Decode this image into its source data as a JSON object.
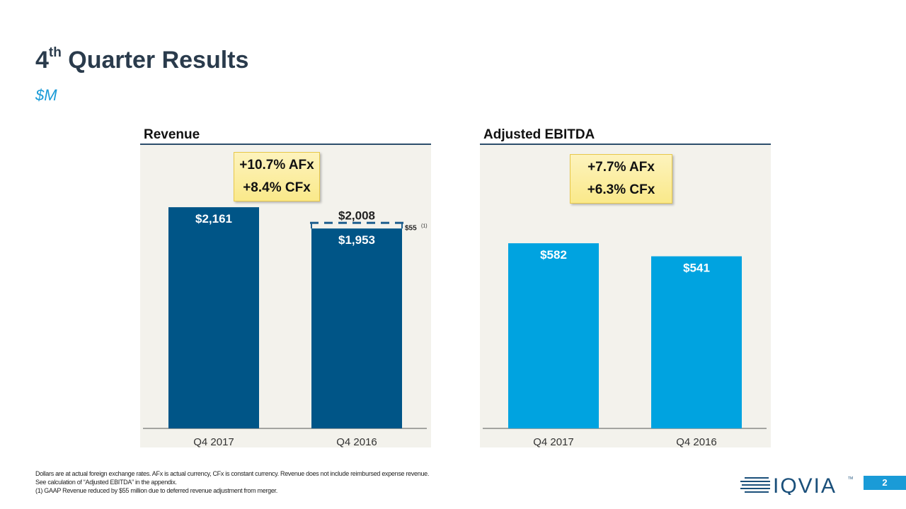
{
  "header": {
    "title_main": "4",
    "title_sup": "th",
    "title_rest": " Quarter Results",
    "subtitle": "$M"
  },
  "colors": {
    "revenue_bar": "#005587",
    "ebitda_bar": "#00a3e0",
    "panel_bg": "#f3f2ec",
    "callout": "#fae98a",
    "accent": "#1a9bd7"
  },
  "chart_data": [
    {
      "type": "bar",
      "title": "Revenue",
      "categories": [
        "Q4 2017",
        "Q4 2016"
      ],
      "values": [
        2161,
        1953
      ],
      "data_labels": [
        "$2,161",
        "$1,953"
      ],
      "adjustment": {
        "category": "Q4 2016",
        "value": 55,
        "label": "$55",
        "footnote_ref": "(1)",
        "total": 2008,
        "total_label": "$2,008"
      },
      "callout": [
        "+10.7% AFx",
        "+8.4% CFx"
      ],
      "ylim": [
        0,
        2735
      ],
      "grid": false
    },
    {
      "type": "bar",
      "title": "Adjusted EBITDA",
      "categories": [
        "Q4 2017",
        "Q4 2016"
      ],
      "values": [
        582,
        541
      ],
      "data_labels": [
        "$582",
        "$541"
      ],
      "callout": [
        "+7.7% AFx",
        "+6.3% CFx"
      ],
      "ylim": [
        0,
        880
      ],
      "grid": false
    }
  ],
  "footnotes": [
    "Dollars are at actual foreign exchange rates. AFx is actual currency, CFx is constant currency. Revenue does not include reimbursed expense revenue.",
    "See calculation of “Adjusted EBITDA” in the appendix.",
    "(1) GAAP Revenue reduced by $55 million due to deferred revenue adjustment from merger."
  ],
  "logo": {
    "text": "IQVIA",
    "tm": "TM"
  },
  "page_number": "2"
}
